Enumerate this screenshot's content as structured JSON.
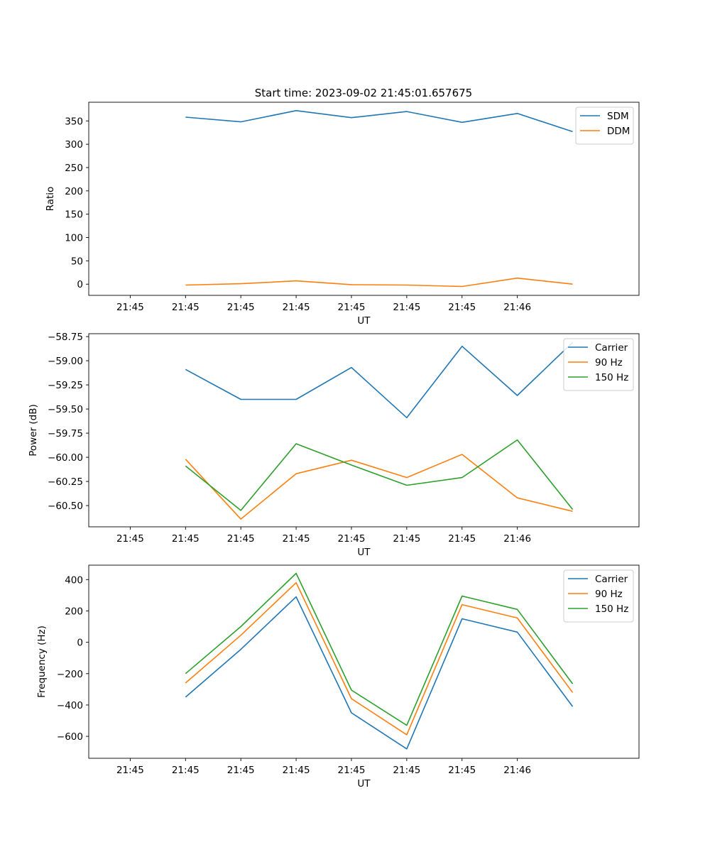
{
  "figure_title": "Start time: 2023-09-02 21:45:01.657675",
  "colors": {
    "blue": "#1f77b4",
    "orange": "#ff7f0e",
    "green": "#2ca02c"
  },
  "chart_data": [
    {
      "type": "line",
      "xlabel": "UT",
      "ylabel": "Ratio",
      "x_tick_labels": [
        "21:45",
        "21:45",
        "21:45",
        "21:45",
        "21:45",
        "21:45",
        "21:45",
        "21:46"
      ],
      "x_index": [
        1,
        2,
        3,
        4,
        5,
        6,
        7,
        8
      ],
      "xlim": [
        -0.75,
        9.2
      ],
      "ylim": [
        -24,
        390
      ],
      "y_ticks": [
        0,
        50,
        100,
        150,
        200,
        250,
        300,
        350
      ],
      "legend_position": "top-right",
      "series": [
        {
          "name": "SDM",
          "color": "#1f77b4",
          "values": [
            358,
            348,
            372,
            357,
            370,
            347,
            366,
            327
          ]
        },
        {
          "name": "DDM",
          "color": "#ff7f0e",
          "values": [
            -2,
            1,
            7,
            -1,
            -2,
            -5,
            13,
            0
          ]
        }
      ]
    },
    {
      "type": "line",
      "xlabel": "UT",
      "ylabel": "Power (dB)",
      "x_tick_labels": [
        "21:45",
        "21:45",
        "21:45",
        "21:45",
        "21:45",
        "21:45",
        "21:45",
        "21:46"
      ],
      "x_index": [
        1,
        2,
        3,
        4,
        5,
        6,
        7,
        8
      ],
      "xlim": [
        -0.75,
        9.2
      ],
      "ylim": [
        -60.72,
        -58.72
      ],
      "y_ticks": [
        -60.5,
        -60.25,
        -60.0,
        -59.75,
        -59.5,
        -59.25,
        -59.0,
        -58.75
      ],
      "y_tick_labels": [
        "−60.50",
        "−60.25",
        "−60.00",
        "−59.75",
        "−59.50",
        "−59.25",
        "−59.00",
        "−58.75"
      ],
      "legend_position": "top-right",
      "series": [
        {
          "name": "Carrier",
          "color": "#1f77b4",
          "values": [
            -59.09,
            -59.4,
            -59.4,
            -59.07,
            -59.59,
            -58.85,
            -59.36,
            -58.81
          ]
        },
        {
          "name": "90 Hz",
          "color": "#ff7f0e",
          "values": [
            -60.02,
            -60.64,
            -60.17,
            -60.03,
            -60.21,
            -59.97,
            -60.42,
            -60.56
          ]
        },
        {
          "name": "150 Hz",
          "color": "#2ca02c",
          "values": [
            -60.09,
            -60.55,
            -59.86,
            -60.08,
            -60.29,
            -60.21,
            -59.82,
            -60.54
          ]
        }
      ]
    },
    {
      "type": "line",
      "xlabel": "UT",
      "ylabel": "Frequency (Hz)",
      "x_tick_labels": [
        "21:45",
        "21:45",
        "21:45",
        "21:45",
        "21:45",
        "21:45",
        "21:45",
        "21:46"
      ],
      "x_index": [
        1,
        2,
        3,
        4,
        5,
        6,
        7,
        8
      ],
      "xlim": [
        -0.75,
        9.2
      ],
      "ylim": [
        -740,
        492
      ],
      "y_ticks": [
        -600,
        -400,
        -200,
        0,
        200,
        400
      ],
      "y_tick_labels": [
        "−600",
        "−400",
        "−200",
        "0",
        "200",
        "400"
      ],
      "legend_position": "top-right",
      "series": [
        {
          "name": "Carrier",
          "color": "#1f77b4",
          "values": [
            -350,
            -45,
            290,
            -450,
            -680,
            150,
            65,
            -410
          ]
        },
        {
          "name": "90 Hz",
          "color": "#ff7f0e",
          "values": [
            -260,
            45,
            380,
            -360,
            -590,
            240,
            155,
            -320
          ]
        },
        {
          "name": "150 Hz",
          "color": "#2ca02c",
          "values": [
            -200,
            100,
            440,
            -305,
            -530,
            295,
            210,
            -265
          ]
        }
      ]
    }
  ]
}
